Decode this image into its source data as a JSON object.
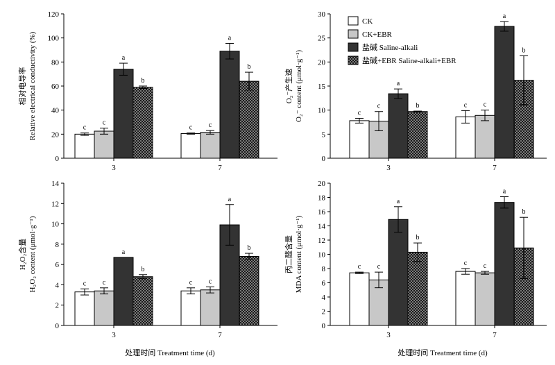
{
  "xlabel": "处理时间 Treatment time (d)",
  "legend": [
    "CK",
    "CK+EBR",
    "盐碱 Saline-alkali",
    "盐碱+EBR Saline-alkali+EBR"
  ],
  "colors": {
    "ck": "#ffffff",
    "ck_ebr": "#c8c8c8",
    "saline": "#333333",
    "saline_ebr": "#1a1a1a",
    "axis": "#000000"
  },
  "chart_data": [
    {
      "type": "bar",
      "categories": [
        "3",
        "7"
      ],
      "ylabel_cn": "相对电导率",
      "ylabel_en": "Relative electrical conductivity (%)",
      "ylim": [
        0,
        120
      ],
      "yticks": [
        0,
        20,
        40,
        60,
        80,
        100,
        120
      ],
      "series": [
        {
          "name": "CK",
          "values": [
            20,
            20.5
          ],
          "err": [
            1,
            0.5
          ],
          "sig": [
            "c",
            "c"
          ]
        },
        {
          "name": "CK+EBR",
          "values": [
            22.5,
            21.5
          ],
          "err": [
            2.5,
            1.5
          ],
          "sig": [
            "c",
            "c"
          ]
        },
        {
          "name": "盐碱 Saline-alkali",
          "values": [
            74,
            89
          ],
          "err": [
            5,
            6.5
          ],
          "sig": [
            "a",
            "a"
          ]
        },
        {
          "name": "盐碱+EBR Saline-alkali+EBR",
          "values": [
            59,
            64
          ],
          "err": [
            1,
            7.5
          ],
          "sig": [
            "b",
            "b"
          ]
        }
      ]
    },
    {
      "type": "bar",
      "categories": [
        "3",
        "7"
      ],
      "ylabel_cn": "O₂⁻产生速",
      "ylabel_en": "O₂⁻ content (μmol·g⁻¹)",
      "ylim": [
        0,
        30
      ],
      "yticks": [
        0,
        5,
        10,
        15,
        20,
        25,
        30
      ],
      "series": [
        {
          "name": "CK",
          "values": [
            7.8,
            8.6
          ],
          "err": [
            0.5,
            1.3
          ],
          "sig": [
            "c",
            "c"
          ]
        },
        {
          "name": "CK+EBR",
          "values": [
            7.7,
            8.9
          ],
          "err": [
            2,
            1.1
          ],
          "sig": [
            "c",
            "c"
          ]
        },
        {
          "name": "盐碱 Saline-alkali",
          "values": [
            13.4,
            27.4
          ],
          "err": [
            1,
            1
          ],
          "sig": [
            "a",
            "a"
          ]
        },
        {
          "name": "盐碱+EBR Saline-alkali+EBR",
          "values": [
            9.7,
            16.2
          ],
          "err": [
            0.1,
            5.1
          ],
          "sig": [
            "b",
            "b"
          ]
        }
      ]
    },
    {
      "type": "bar",
      "categories": [
        "3",
        "7"
      ],
      "ylabel_cn": "H₂O₂含量",
      "ylabel_en": "H₂O₂ content (μmol·g⁻¹)",
      "ylim": [
        0,
        14
      ],
      "yticks": [
        0,
        2,
        4,
        6,
        8,
        10,
        12,
        14
      ],
      "series": [
        {
          "name": "CK",
          "values": [
            3.3,
            3.4
          ],
          "err": [
            0.3,
            0.3
          ],
          "sig": [
            "c",
            "c"
          ]
        },
        {
          "name": "CK+EBR",
          "values": [
            3.4,
            3.5
          ],
          "err": [
            0.3,
            0.3
          ],
          "sig": [
            "c",
            "c"
          ]
        },
        {
          "name": "盐碱 Saline-alkali",
          "values": [
            6.7,
            9.9
          ],
          "err": [
            0,
            2
          ],
          "sig": [
            "a",
            "a"
          ]
        },
        {
          "name": "盐碱+EBR Saline-alkali+EBR",
          "values": [
            4.8,
            6.8
          ],
          "err": [
            0.2,
            0.3
          ],
          "sig": [
            "b",
            "b"
          ]
        }
      ]
    },
    {
      "type": "bar",
      "categories": [
        "3",
        "7"
      ],
      "ylabel_cn": "丙二醛含量",
      "ylabel_en": "MDA content (μmol·g⁻¹)",
      "ylim": [
        0,
        20
      ],
      "yticks": [
        0,
        2,
        4,
        6,
        8,
        10,
        12,
        14,
        16,
        18,
        20
      ],
      "series": [
        {
          "name": "CK",
          "values": [
            7.4,
            7.6
          ],
          "err": [
            0.1,
            0.4
          ],
          "sig": [
            "c",
            "c"
          ]
        },
        {
          "name": "CK+EBR",
          "values": [
            6.4,
            7.4
          ],
          "err": [
            1.1,
            0.2
          ],
          "sig": [
            "c",
            "c"
          ]
        },
        {
          "name": "盐碱 Saline-alkali",
          "values": [
            14.9,
            17.3
          ],
          "err": [
            1.8,
            0.8
          ],
          "sig": [
            "a",
            "a"
          ]
        },
        {
          "name": "盐碱+EBR Saline-alkali+EBR",
          "values": [
            10.3,
            10.9
          ],
          "err": [
            1.3,
            4.3
          ],
          "sig": [
            "b",
            "b"
          ]
        }
      ]
    }
  ]
}
